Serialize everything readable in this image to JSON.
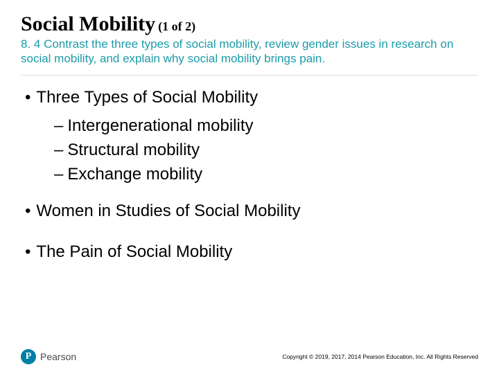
{
  "title": {
    "main": "Social Mobility",
    "sub": "(1 of 2)"
  },
  "objective": "8. 4 Contrast the three types of social mobility, review gender issues in research on social mobility, and explain why social mobility brings pain.",
  "bullets": {
    "b1": "Three Types of Social Mobility",
    "b1a": "Intergenerational mobility",
    "b1b": "Structural mobility",
    "b1c": "Exchange mobility",
    "b2": "Women in Studies of Social Mobility",
    "b3": "The Pain of Social Mobility"
  },
  "footer": {
    "brand": "Pearson",
    "logo_letter": "P",
    "copyright": "Copyright © 2019, 2017, 2014 Pearson Education, Inc. All Rights Reserved"
  },
  "colors": {
    "accent": "#1a9ba8",
    "logo": "#007fa3",
    "text": "#000000",
    "background": "#ffffff"
  }
}
